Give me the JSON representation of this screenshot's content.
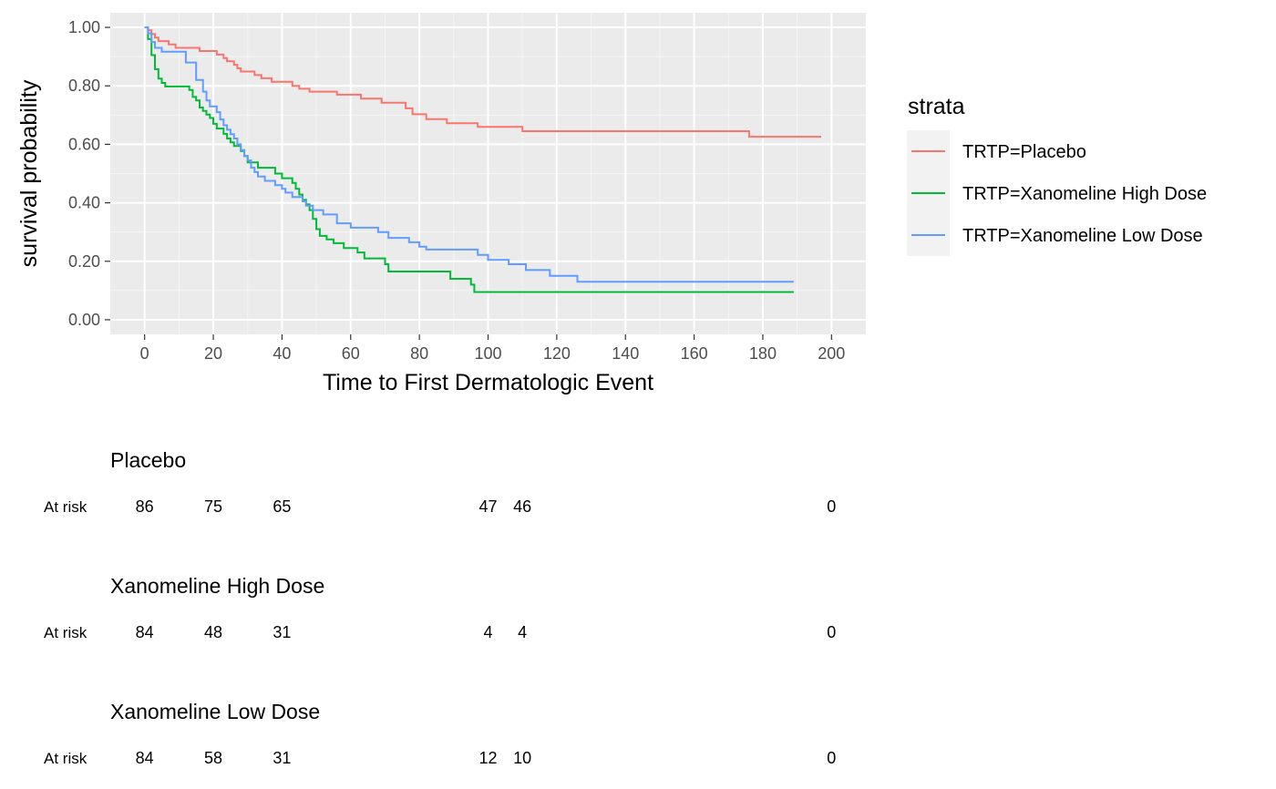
{
  "chart_data": {
    "type": "line",
    "subtype": "kaplan-meier step",
    "xlabel": "Time to First Dermatologic Event",
    "ylabel": "survival probability",
    "xlim": [
      -10,
      210
    ],
    "ylim": [
      -0.05,
      1.05
    ],
    "x_ticks": [
      0,
      20,
      40,
      60,
      80,
      100,
      120,
      140,
      160,
      180,
      200
    ],
    "x_tick_labels": [
      "0",
      "20",
      "40",
      "60",
      "80",
      "100",
      "120",
      "140",
      "160",
      "180",
      "200"
    ],
    "y_ticks": [
      0,
      0.2,
      0.4,
      0.6,
      0.8,
      1.0
    ],
    "y_tick_labels": [
      "0.00",
      "0.20",
      "0.40",
      "0.60",
      "0.80",
      "1.00"
    ],
    "grid": true,
    "panel_background": "#ebebeb",
    "legend": {
      "title": "strata",
      "placement": "right"
    },
    "series": [
      {
        "name": "TRTP=Placebo",
        "color": "#f8766d",
        "points": [
          [
            0,
            1.0
          ],
          [
            1,
            0.99
          ],
          [
            2,
            0.977
          ],
          [
            3,
            0.965
          ],
          [
            4,
            0.953
          ],
          [
            7,
            0.942
          ],
          [
            9,
            0.93
          ],
          [
            16,
            0.919
          ],
          [
            21,
            0.907
          ],
          [
            23,
            0.895
          ],
          [
            24,
            0.884
          ],
          [
            26,
            0.872
          ],
          [
            27,
            0.86
          ],
          [
            28,
            0.849
          ],
          [
            32,
            0.837
          ],
          [
            34,
            0.826
          ],
          [
            37,
            0.814
          ],
          [
            43,
            0.8
          ],
          [
            45,
            0.79
          ],
          [
            48,
            0.78
          ],
          [
            56,
            0.77
          ],
          [
            63,
            0.756
          ],
          [
            69,
            0.742
          ],
          [
            76,
            0.723
          ],
          [
            78,
            0.703
          ],
          [
            82,
            0.686
          ],
          [
            88,
            0.672
          ],
          [
            97,
            0.66
          ],
          [
            110,
            0.645
          ],
          [
            176,
            0.626
          ],
          [
            197,
            0.626
          ]
        ]
      },
      {
        "name": "TRTP=Xanomeline High Dose",
        "color": "#00ba38",
        "points": [
          [
            0,
            1.0
          ],
          [
            1,
            0.96
          ],
          [
            2,
            0.905
          ],
          [
            3,
            0.857
          ],
          [
            4,
            0.825
          ],
          [
            5,
            0.81
          ],
          [
            6,
            0.798
          ],
          [
            13,
            0.786
          ],
          [
            14,
            0.762
          ],
          [
            15,
            0.75
          ],
          [
            16,
            0.726
          ],
          [
            17,
            0.714
          ],
          [
            18,
            0.702
          ],
          [
            19,
            0.69
          ],
          [
            20,
            0.67
          ],
          [
            21,
            0.654
          ],
          [
            23,
            0.636
          ],
          [
            24,
            0.62
          ],
          [
            25,
            0.607
          ],
          [
            26,
            0.594
          ],
          [
            28,
            0.577
          ],
          [
            29,
            0.56
          ],
          [
            30,
            0.538
          ],
          [
            33,
            0.52
          ],
          [
            38,
            0.5
          ],
          [
            40,
            0.484
          ],
          [
            43,
            0.468
          ],
          [
            44,
            0.448
          ],
          [
            45,
            0.428
          ],
          [
            46,
            0.41
          ],
          [
            47,
            0.395
          ],
          [
            48,
            0.375
          ],
          [
            49,
            0.345
          ],
          [
            50,
            0.31
          ],
          [
            51,
            0.287
          ],
          [
            53,
            0.275
          ],
          [
            55,
            0.262
          ],
          [
            58,
            0.245
          ],
          [
            62,
            0.23
          ],
          [
            64,
            0.21
          ],
          [
            70,
            0.19
          ],
          [
            71,
            0.165
          ],
          [
            89,
            0.14
          ],
          [
            95,
            0.12
          ],
          [
            96,
            0.095
          ],
          [
            189,
            0.095
          ]
        ]
      },
      {
        "name": "TRTP=Xanomeline Low Dose",
        "color": "#619cff",
        "points": [
          [
            0,
            1.0
          ],
          [
            1,
            0.98
          ],
          [
            2,
            0.95
          ],
          [
            3,
            0.93
          ],
          [
            5,
            0.917
          ],
          [
            12,
            0.88
          ],
          [
            15,
            0.82
          ],
          [
            17,
            0.78
          ],
          [
            18,
            0.75
          ],
          [
            19,
            0.73
          ],
          [
            21,
            0.71
          ],
          [
            22,
            0.685
          ],
          [
            23,
            0.665
          ],
          [
            24,
            0.65
          ],
          [
            25,
            0.635
          ],
          [
            26,
            0.62
          ],
          [
            27,
            0.6
          ],
          [
            28,
            0.58
          ],
          [
            29,
            0.56
          ],
          [
            30,
            0.545
          ],
          [
            31,
            0.52
          ],
          [
            32,
            0.505
          ],
          [
            33,
            0.49
          ],
          [
            35,
            0.475
          ],
          [
            38,
            0.46
          ],
          [
            40,
            0.448
          ],
          [
            41,
            0.435
          ],
          [
            43,
            0.42
          ],
          [
            46,
            0.405
          ],
          [
            47,
            0.39
          ],
          [
            49,
            0.375
          ],
          [
            52,
            0.36
          ],
          [
            56,
            0.33
          ],
          [
            60,
            0.315
          ],
          [
            68,
            0.3
          ],
          [
            71,
            0.28
          ],
          [
            77,
            0.265
          ],
          [
            80,
            0.25
          ],
          [
            82,
            0.24
          ],
          [
            97,
            0.222
          ],
          [
            100,
            0.205
          ],
          [
            106,
            0.19
          ],
          [
            111,
            0.17
          ],
          [
            118,
            0.15
          ],
          [
            126,
            0.13
          ],
          [
            189,
            0.13
          ]
        ]
      }
    ]
  },
  "risk_table": {
    "row_label": "At risk",
    "times": [
      0,
      20,
      40,
      100,
      110,
      200
    ],
    "groups": [
      {
        "title": "Placebo",
        "counts": [
          "86",
          "75",
          "65",
          "47",
          "46",
          "0"
        ]
      },
      {
        "title": "Xanomeline High Dose",
        "counts": [
          "84",
          "48",
          "31",
          "4",
          "4",
          "0"
        ]
      },
      {
        "title": "Xanomeline Low Dose",
        "counts": [
          "84",
          "58",
          "31",
          "12",
          "10",
          "0"
        ]
      }
    ]
  }
}
